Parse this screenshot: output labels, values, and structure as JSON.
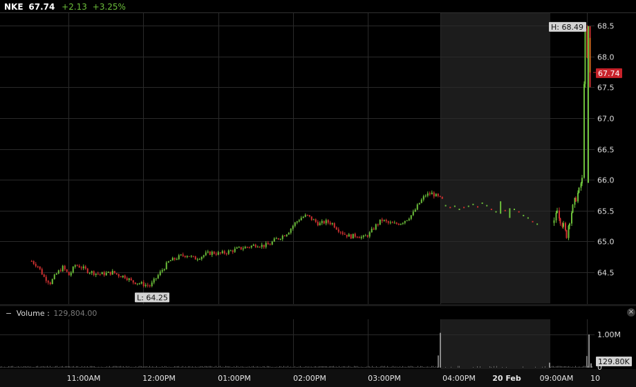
{
  "header": {
    "symbol": "NKE",
    "last": "67.74",
    "change": "+2.13",
    "change_pct": "+3.25%"
  },
  "volume_panel": {
    "label": "Volume",
    "separator": ":",
    "value": "129,804.00",
    "collapse_glyph": "−",
    "close_glyph": "×"
  },
  "colors": {
    "up": "#6cbf3a",
    "down": "#d03030",
    "grid": "#2a2a2a",
    "shaded": "#1c1c1c",
    "label_bg": "#d3d3d3",
    "last_bg": "#c8222a",
    "axis_text": "#ddd"
  },
  "chart_data": [
    {
      "type": "candlestick",
      "symbol": "NKE",
      "ylim": [
        64.2,
        68.65
      ],
      "y_ticks": [
        "64.5",
        "65.0",
        "65.5",
        "66.0",
        "66.5",
        "67.0",
        "67.5",
        "68.0",
        "68.5"
      ],
      "x_ticks": [
        "11:00AM",
        "12:00PM",
        "01:00PM",
        "02:00PM",
        "03:00PM",
        "04:00PM",
        "20 Feb",
        "09:00AM",
        "10"
      ],
      "x_tick_bold": [
        false,
        false,
        false,
        false,
        false,
        false,
        true,
        false,
        false
      ],
      "high_label": "H: 68.49",
      "low_label": "L: 64.25",
      "last_label": "67.74",
      "high_value": 68.49,
      "low_value": 64.25,
      "last_value": 67.74,
      "shaded_sessions": [
        "after-hours",
        "pre-market"
      ],
      "grid": true,
      "price_path": [
        [
          "10:30",
          64.68
        ],
        [
          "10:35",
          64.6
        ],
        [
          "10:40",
          64.42
        ],
        [
          "10:45",
          64.33
        ],
        [
          "10:50",
          64.48
        ],
        [
          "10:55",
          64.58
        ],
        [
          "11:00",
          64.45
        ],
        [
          "11:05",
          64.62
        ],
        [
          "11:10",
          64.58
        ],
        [
          "11:15",
          64.52
        ],
        [
          "11:20",
          64.49
        ],
        [
          "11:25",
          64.47
        ],
        [
          "11:30",
          64.48
        ],
        [
          "11:35",
          64.5
        ],
        [
          "11:40",
          64.45
        ],
        [
          "11:45",
          64.43
        ],
        [
          "11:50",
          64.35
        ],
        [
          "11:55",
          64.33
        ],
        [
          "12:00",
          64.3
        ],
        [
          "12:05",
          64.28
        ],
        [
          "12:10",
          64.42
        ],
        [
          "12:15",
          64.55
        ],
        [
          "12:20",
          64.68
        ],
        [
          "12:25",
          64.72
        ],
        [
          "12:30",
          64.77
        ],
        [
          "12:35",
          64.78
        ],
        [
          "12:40",
          64.72
        ],
        [
          "12:45",
          64.75
        ],
        [
          "12:50",
          64.8
        ],
        [
          "12:55",
          64.82
        ],
        [
          "13:00",
          64.8
        ],
        [
          "13:05",
          64.82
        ],
        [
          "13:10",
          64.85
        ],
        [
          "13:15",
          64.88
        ],
        [
          "13:20",
          64.9
        ],
        [
          "13:25",
          64.92
        ],
        [
          "13:30",
          64.95
        ],
        [
          "13:35",
          64.93
        ],
        [
          "13:40",
          64.95
        ],
        [
          "13:45",
          65.03
        ],
        [
          "13:50",
          65.08
        ],
        [
          "13:55",
          65.15
        ],
        [
          "14:00",
          65.28
        ],
        [
          "14:05",
          65.38
        ],
        [
          "14:10",
          65.42
        ],
        [
          "14:15",
          65.35
        ],
        [
          "14:20",
          65.28
        ],
        [
          "14:25",
          65.32
        ],
        [
          "14:30",
          65.3
        ],
        [
          "14:35",
          65.2
        ],
        [
          "14:40",
          65.12
        ],
        [
          "14:45",
          65.08
        ],
        [
          "14:50",
          65.1
        ],
        [
          "14:55",
          65.06
        ],
        [
          "15:00",
          65.12
        ],
        [
          "15:05",
          65.25
        ],
        [
          "15:10",
          65.35
        ],
        [
          "15:15",
          65.3
        ],
        [
          "15:20",
          65.28
        ],
        [
          "15:25",
          65.3
        ],
        [
          "15:30",
          65.36
        ],
        [
          "15:35",
          65.45
        ],
        [
          "15:40",
          65.62
        ],
        [
          "15:45",
          65.75
        ],
        [
          "15:50",
          65.78
        ],
        [
          "15:55",
          65.72
        ],
        [
          "16:00",
          65.65
        ]
      ],
      "after_hours_points": [
        [
          "16:05",
          65.58
        ],
        [
          "16:10",
          65.55
        ],
        [
          "16:15",
          65.57
        ],
        [
          "16:20",
          65.52
        ],
        [
          "16:25",
          65.55
        ],
        [
          "16:30",
          65.57
        ],
        [
          "16:35",
          65.6
        ],
        [
          "16:40",
          65.56
        ],
        [
          "16:45",
          65.62
        ],
        [
          "16:50",
          65.58
        ],
        [
          "16:55",
          65.52
        ],
        [
          "17:00",
          65.48
        ],
        [
          "17:05",
          65.55
        ],
        [
          "17:10",
          65.5
        ],
        [
          "17:15",
          65.46
        ],
        [
          "17:20",
          65.52
        ],
        [
          "17:25",
          65.48
        ],
        [
          "17:30",
          65.42
        ],
        [
          "17:35",
          65.38
        ],
        [
          "17:40",
          65.32
        ],
        [
          "17:45",
          65.28
        ]
      ],
      "premarket_path": [
        [
          "09:05",
          65.3
        ],
        [
          "09:10",
          65.55
        ],
        [
          "09:15",
          65.35
        ],
        [
          "09:20",
          65.25
        ],
        [
          "09:25",
          65.1
        ],
        [
          "09:30",
          65.35
        ],
        [
          "09:35",
          65.55
        ],
        [
          "09:40",
          65.7
        ],
        [
          "09:45",
          65.82
        ],
        [
          "09:50",
          66.0
        ],
        [
          "09:55",
          68.4
        ],
        [
          "10:00",
          67.74
        ]
      ]
    },
    {
      "type": "bar",
      "title": "Volume",
      "value_label": "129,804.00",
      "y_ticks": [
        "0",
        "1.00M"
      ],
      "last_label": "129.80K",
      "ylim": [
        0,
        1300000
      ],
      "spikes": [
        {
          "time": "16:00",
          "value": 1050000
        },
        {
          "time": "08:55",
          "value": 150000
        },
        {
          "time": "09:55",
          "value": 1000000
        },
        {
          "time": "10:00",
          "value": 129800
        }
      ]
    }
  ]
}
